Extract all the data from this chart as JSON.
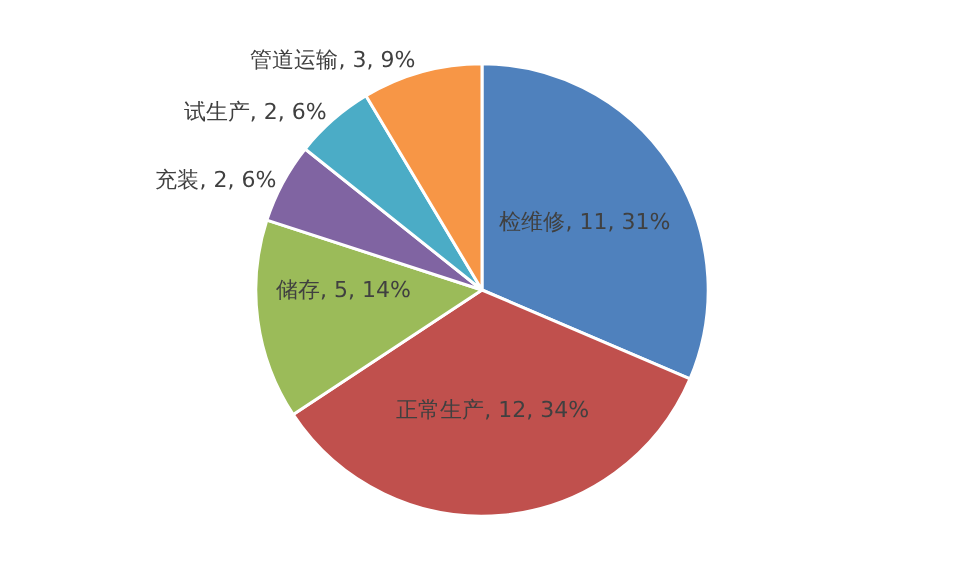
{
  "chart_data": {
    "type": "pie",
    "categories": [
      "检维修",
      "正常生产",
      "储存",
      "充装",
      "试生产",
      "管道运输"
    ],
    "values": [
      11,
      12,
      5,
      2,
      2,
      3
    ],
    "colors": [
      "#4f81bd",
      "#c0504d",
      "#9bbb59",
      "#8064a2",
      "#4bacc6",
      "#f79646"
    ],
    "value_labels": [
      "11, 31%",
      "12, 34%",
      "5, 14%",
      "2, 6%",
      "2, 6%",
      "3, 9%"
    ],
    "legend": false
  }
}
